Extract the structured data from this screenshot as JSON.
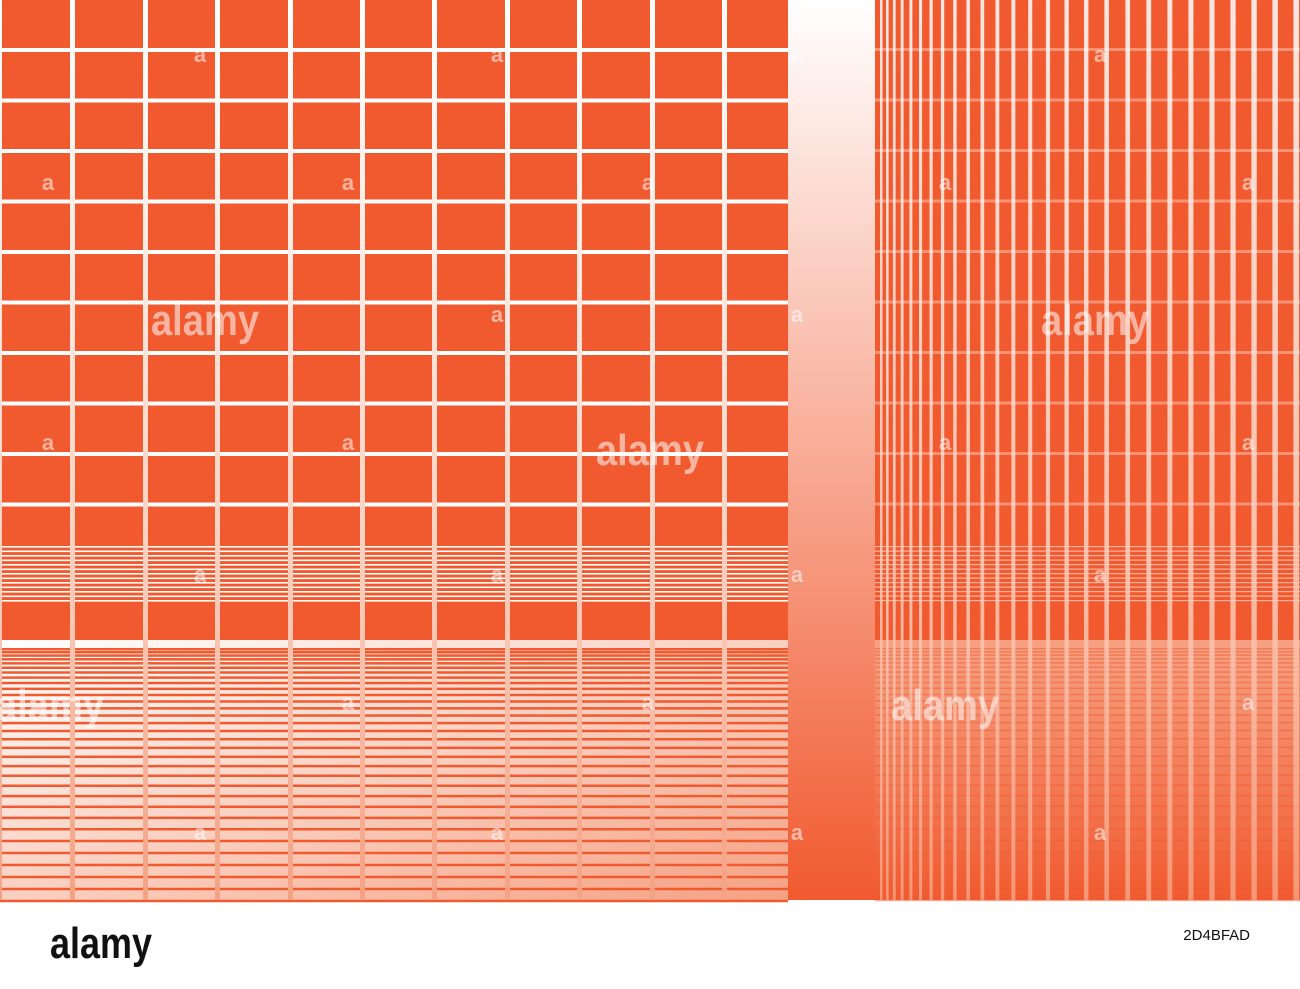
{
  "watermark": "alamy",
  "watermark_mark": "a",
  "footer": {
    "logo": "alamy",
    "image_id": "2D4BFAD"
  }
}
